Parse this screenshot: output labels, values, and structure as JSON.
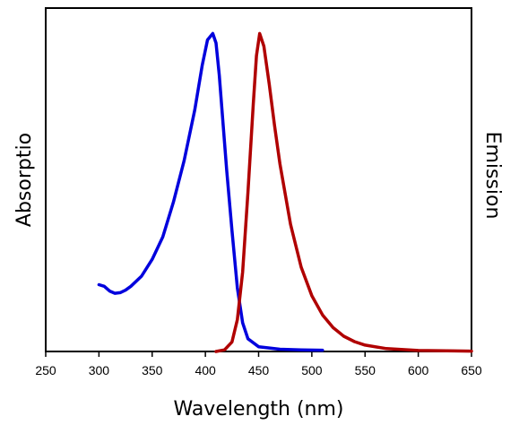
{
  "chart_data": {
    "type": "line",
    "xlabel": "Wavelength (nm)",
    "ylabel_left": "Absorptio",
    "ylabel_right": "Emission",
    "xlim": [
      250,
      650
    ],
    "xticks": [
      250,
      300,
      350,
      400,
      450,
      500,
      550,
      600,
      650
    ],
    "ylim": [
      0,
      1.08
    ],
    "grid": false,
    "series": [
      {
        "key": "absorption",
        "color": "#0000dd",
        "points": [
          [
            300,
            0.21
          ],
          [
            305,
            0.205
          ],
          [
            310,
            0.19
          ],
          [
            315,
            0.183
          ],
          [
            320,
            0.185
          ],
          [
            325,
            0.193
          ],
          [
            330,
            0.205
          ],
          [
            340,
            0.237
          ],
          [
            350,
            0.29
          ],
          [
            360,
            0.36
          ],
          [
            370,
            0.47
          ],
          [
            380,
            0.6
          ],
          [
            390,
            0.76
          ],
          [
            397,
            0.9
          ],
          [
            402,
            0.98
          ],
          [
            407,
            1.0
          ],
          [
            410,
            0.97
          ],
          [
            413,
            0.87
          ],
          [
            417,
            0.7
          ],
          [
            420,
            0.57
          ],
          [
            425,
            0.38
          ],
          [
            430,
            0.2
          ],
          [
            435,
            0.09
          ],
          [
            440,
            0.04
          ],
          [
            450,
            0.015
          ],
          [
            470,
            0.007
          ],
          [
            490,
            0.005
          ],
          [
            510,
            0.004
          ]
        ]
      },
      {
        "key": "emission",
        "color": "#b00000",
        "points": [
          [
            410,
            0.0
          ],
          [
            418,
            0.005
          ],
          [
            425,
            0.03
          ],
          [
            430,
            0.1
          ],
          [
            435,
            0.25
          ],
          [
            440,
            0.5
          ],
          [
            445,
            0.78
          ],
          [
            448,
            0.93
          ],
          [
            451,
            1.0
          ],
          [
            455,
            0.96
          ],
          [
            460,
            0.84
          ],
          [
            465,
            0.71
          ],
          [
            470,
            0.59
          ],
          [
            480,
            0.4
          ],
          [
            490,
            0.265
          ],
          [
            500,
            0.175
          ],
          [
            510,
            0.115
          ],
          [
            520,
            0.075
          ],
          [
            530,
            0.048
          ],
          [
            540,
            0.031
          ],
          [
            550,
            0.02
          ],
          [
            570,
            0.009
          ],
          [
            600,
            0.003
          ],
          [
            650,
            0.001
          ]
        ]
      }
    ]
  }
}
